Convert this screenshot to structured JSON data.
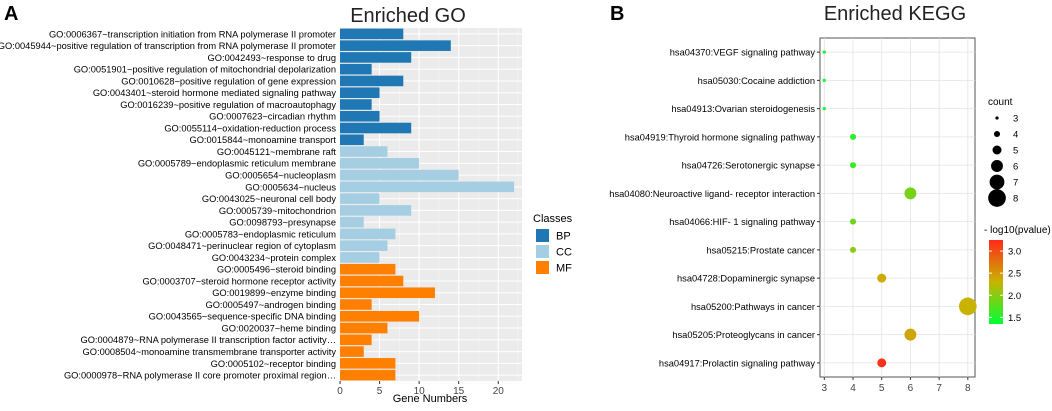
{
  "panel_a_label": "A",
  "panel_b_label": "B",
  "chart_data": [
    {
      "type": "bar",
      "orientation": "horizontal",
      "title": "Enriched GO",
      "xlabel": "Gene Numbers",
      "ylabel": "",
      "xlim": [
        0,
        23
      ],
      "xticks": [
        0,
        5,
        10,
        15,
        20
      ],
      "legend_title": "Classes",
      "legend_position": "right",
      "classes": [
        {
          "name": "BP",
          "color": "#1F78B4"
        },
        {
          "name": "CC",
          "color": "#A6CEE3"
        },
        {
          "name": "MF",
          "color": "#FF7F00"
        }
      ],
      "categories": [
        "GO:0006367~transcription initiation from RNA polymerase II promoter",
        "GO:0045944~positive regulation of transcription from RNA polymerase II promoter",
        "GO:0042493~response to drug",
        "GO:0051901~positive regulation of mitochondrial depolarization",
        "GO:0010628~positive regulation of gene expression",
        "GO:0043401~steroid hormone mediated signaling pathway",
        "GO:0016239~positive regulation of macroautophagy",
        "GO:0007623~circadian rhythm",
        "GO:0055114~oxidation-reduction process",
        "GO:0015844~monoamine transport",
        "GO:0045121~membrane raft",
        "GO:0005789~endoplasmic reticulum membrane",
        "GO:0005654~nucleoplasm",
        "GO:0005634~nucleus",
        "GO:0043025~neuronal cell body",
        "GO:0005739~mitochondrion",
        "GO:0098793~presynapse",
        "GO:0005783~endoplasmic reticulum",
        "GO:0048471~perinuclear region of cytoplasm",
        "GO:0043234~protein complex",
        "GO:0005496~steroid binding",
        "GO:0003707~steroid hormone receptor activity",
        "GO:0019899~enzyme binding",
        "GO:0005497~androgen binding",
        "GO:0043565~sequence-specific DNA binding",
        "GO:0020037~heme binding",
        "GO:0004879~RNA polymerase II transcription factor activity…",
        "GO:0008504~monoamine transmembrane transporter activity",
        "GO:0005102~receptor binding",
        "GO:0000978~RNA polymerase II core promoter proximal region…"
      ],
      "values": [
        8,
        14,
        9,
        4,
        8,
        5,
        4,
        5,
        9,
        3,
        6,
        10,
        15,
        22,
        5,
        9,
        3,
        7,
        6,
        5,
        7,
        8,
        12,
        4,
        10,
        6,
        4,
        3,
        7,
        7
      ],
      "classes_per_bar": [
        "BP",
        "BP",
        "BP",
        "BP",
        "BP",
        "BP",
        "BP",
        "BP",
        "BP",
        "BP",
        "CC",
        "CC",
        "CC",
        "CC",
        "CC",
        "CC",
        "CC",
        "CC",
        "CC",
        "CC",
        "MF",
        "MF",
        "MF",
        "MF",
        "MF",
        "MF",
        "MF",
        "MF",
        "MF",
        "MF"
      ]
    },
    {
      "type": "scatter",
      "title": "Enriched KEGG",
      "xlabel": "",
      "ylabel": "",
      "xlim": [
        2.85,
        8.25
      ],
      "xticks": [
        3,
        4,
        5,
        6,
        7,
        8
      ],
      "categories": [
        "hsa04370:VEGF signaling pathway",
        "hsa05030:Cocaine addiction",
        "hsa04913:Ovarian steroidogenesis",
        "hsa04919:Thyroid hormone signaling pathway",
        "hsa04726:Serotonergic synapse",
        "hsa04080:Neuroactive ligand- receptor interaction",
        "hsa04066:HIF- 1 signaling pathway",
        "hsa05215:Prostate cancer",
        "hsa04728:Dopaminergic synapse",
        "hsa05200:Pathways in cancer",
        "hsa05205:Proteoglycans in cancer",
        "hsa04917:Prolactin signaling pathway"
      ],
      "x": [
        3,
        3,
        3,
        4,
        4,
        6,
        4,
        4,
        5,
        8,
        6,
        5
      ],
      "count": [
        3,
        3,
        3,
        4,
        4,
        6,
        4,
        4,
        5,
        8,
        6,
        5
      ],
      "neg_log10_pvalue": [
        1.4,
        1.4,
        1.4,
        1.55,
        1.6,
        1.9,
        1.85,
        2.0,
        2.35,
        2.3,
        2.4,
        3.2
      ],
      "size_legend_title": "count",
      "size_legend_values": [
        3,
        4,
        5,
        6,
        7,
        8
      ],
      "color_legend_title": "- log10(pvalue)",
      "color_legend_ticks": [
        1.5,
        2.0,
        2.5,
        3.0
      ],
      "color_range": [
        1.35,
        3.25
      ],
      "color_low": "#00FF33",
      "color_mid": "#C8B400",
      "color_high": "#FF2A1A",
      "grid": true,
      "legend_position": "right"
    }
  ]
}
